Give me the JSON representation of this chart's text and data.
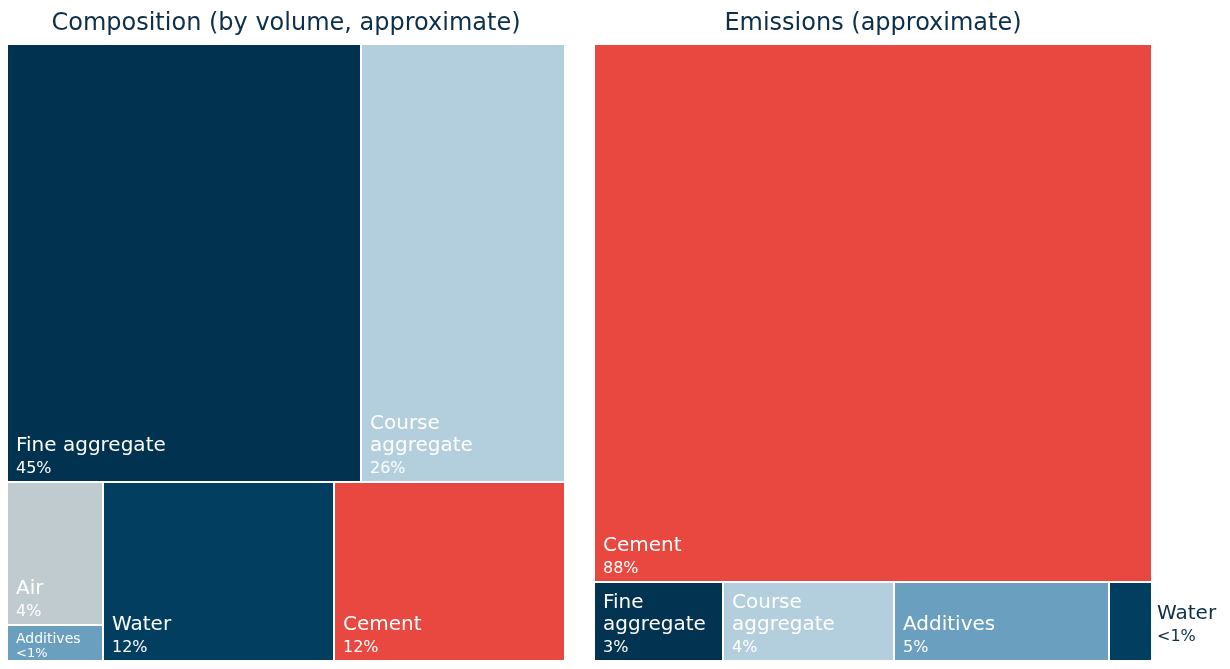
{
  "chart_data": [
    {
      "type": "other",
      "title": "Composition (by volume, approximate)",
      "categories": [
        "Fine aggregate",
        "Course aggregate",
        "Air",
        "Additives",
        "Water",
        "Cement"
      ],
      "values": [
        45,
        26,
        4,
        1,
        12,
        12
      ],
      "value_labels": [
        "45%",
        "26%",
        "4%",
        "<1%",
        "12%",
        "12%"
      ],
      "colors": [
        "#01324f",
        "#b3cfdd",
        "#c0cbd0",
        "#6a9fbf",
        "#023e60",
        "#e8483f"
      ]
    },
    {
      "type": "other",
      "title": "Emissions (approximate)",
      "categories": [
        "Cement",
        "Fine aggregate",
        "Course aggregate",
        "Additives",
        "Water"
      ],
      "values": [
        88,
        3,
        4,
        5,
        1
      ],
      "value_labels": [
        "88%",
        "3%",
        "4%",
        "5%",
        "<1%"
      ],
      "colors": [
        "#e8483f",
        "#023350",
        "#b3cfdd",
        "#6a9fbf",
        "#023e60"
      ]
    }
  ]
}
